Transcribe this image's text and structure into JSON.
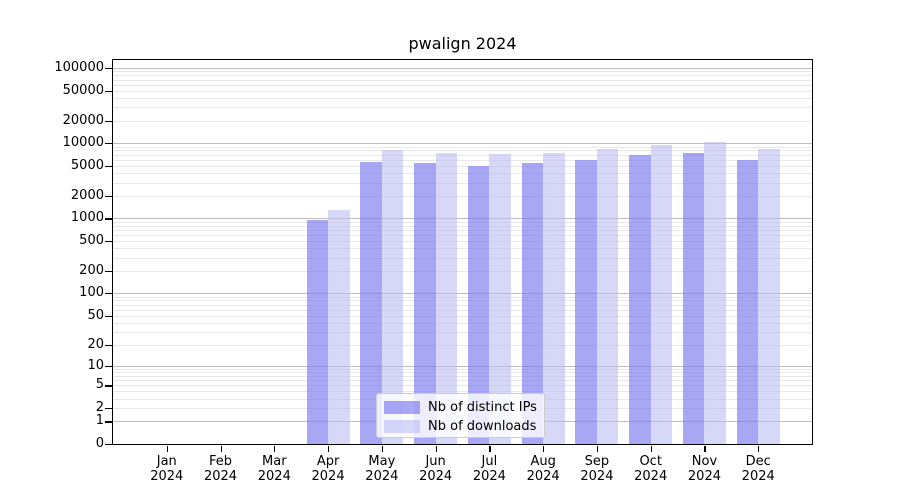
{
  "title": "pwalign 2024",
  "chart_data": {
    "type": "bar",
    "title": "pwalign 2024",
    "categories": [
      "Jan",
      "Feb",
      "Mar",
      "Apr",
      "May",
      "Jun",
      "Jul",
      "Aug",
      "Sep",
      "Oct",
      "Nov",
      "Dec"
    ],
    "year": "2024",
    "series": [
      {
        "name": "Nb of distinct IPs",
        "color": "rgba(122,122,238,0.66)",
        "values": [
          0,
          0,
          0,
          950,
          5600,
          5500,
          5000,
          5400,
          6000,
          6900,
          7500,
          6000
        ]
      },
      {
        "name": "Nb of downloads",
        "color": "rgba(186,186,243,0.58)",
        "values": [
          0,
          0,
          0,
          1300,
          8100,
          7500,
          7100,
          7400,
          8300,
          9600,
          10400,
          8500
        ]
      }
    ],
    "yscale": "log1p",
    "yticks": [
      0,
      1,
      2,
      5,
      10,
      20,
      50,
      100,
      200,
      500,
      1000,
      2000,
      5000,
      10000,
      20000,
      50000,
      100000
    ],
    "ylim": [
      0,
      128000
    ],
    "xlabel": "",
    "ylabel": "",
    "grid": true,
    "legend_position": "lower center"
  },
  "colors": {
    "major_grid": "#bdbdbd",
    "minor_grid": "#e8e8e8",
    "axis": "#000000",
    "background": "#ffffff"
  }
}
